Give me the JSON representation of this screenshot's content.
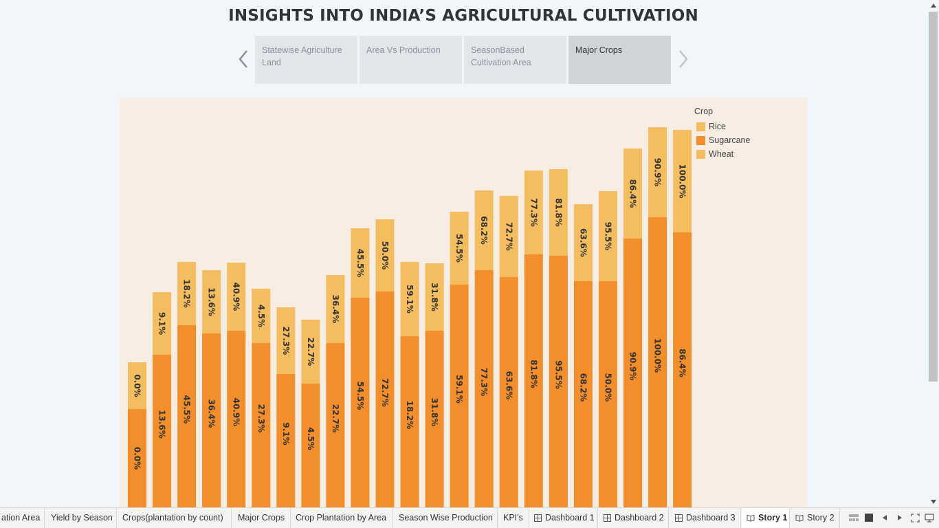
{
  "title": "INSIGHTS INTO INDIA’S AGRICULTURAL CULTIVATION",
  "story_points": [
    {
      "label": "Statewise Agriculture Land",
      "active": false
    },
    {
      "label": "Area Vs Production",
      "active": false
    },
    {
      "label": "SeasonBased Cultivation Area",
      "active": false
    },
    {
      "label": "Major Crops",
      "active": true
    }
  ],
  "legend": {
    "title": "Crop",
    "items": [
      {
        "label": "Rice",
        "color": "#f4bd5f"
      },
      {
        "label": "Sugarcane",
        "color": "#f28e2b"
      },
      {
        "label": "Wheat",
        "color": "#f4bd5f"
      }
    ]
  },
  "chart_data": {
    "type": "bar",
    "stacked": true,
    "series": [
      {
        "name": "Sugarcane",
        "color": "#f28e2b",
        "labels": [
          "0.0%",
          "13.6%",
          "45.5%",
          "36.4%",
          "40.9%",
          "27.3%",
          "9.1%",
          "4.5%",
          "22.7%",
          "54.5%",
          "72.7%",
          "18.2%",
          "31.8%",
          "59.1%",
          "77.3%",
          "63.6%",
          "81.8%",
          "95.5%",
          "68.2%",
          "50.0%",
          "90.9%",
          "100.0%",
          "86.4%"
        ]
      },
      {
        "name": "Rice",
        "color": "#f4bd5f",
        "labels": [
          "0.0%",
          "9.1%",
          "18.2%",
          "13.6%",
          "40.9%",
          "4.5%",
          "27.3%",
          "22.7%",
          "36.4%",
          "45.5%",
          "50.0%",
          "59.1%",
          "31.8%",
          "54.5%",
          "68.2%",
          "72.7%",
          "77.3%",
          "81.8%",
          "63.6%",
          "95.5%",
          "86.4%",
          "90.9%",
          "100.0%"
        ]
      }
    ],
    "bar_totals": [
      211,
      313,
      357,
      345,
      356,
      318,
      291,
      273,
      338,
      406,
      419,
      357,
      355,
      430,
      461,
      453,
      490,
      492,
      441,
      460,
      522,
      553,
      549
    ],
    "bar_bottom_segment": [
      143,
      222,
      265,
      253,
      257,
      239,
      194,
      180,
      239,
      305,
      314,
      249,
      257,
      324,
      345,
      335,
      368,
      366,
      329,
      329,
      391,
      422,
      400
    ],
    "xlabel": "",
    "ylabel": ""
  },
  "tabs": [
    {
      "label": "ation Area",
      "icon": "none",
      "active": false
    },
    {
      "label": "Yield by Season",
      "icon": "none",
      "active": false
    },
    {
      "label": "Crops(plantation by count)",
      "icon": "none",
      "active": false
    },
    {
      "label": "Major Crops",
      "icon": "none",
      "active": false
    },
    {
      "label": "Crop Plantation by Area",
      "icon": "none",
      "active": false
    },
    {
      "label": "Season Wise Production",
      "icon": "none",
      "active": false
    },
    {
      "label": "KPI's",
      "icon": "none",
      "active": false
    },
    {
      "label": "Dashboard 1",
      "icon": "dashboard-icon",
      "active": false
    },
    {
      "label": "Dashboard 2",
      "icon": "dashboard-icon",
      "active": false
    },
    {
      "label": "Dashboard 3",
      "icon": "dashboard-icon",
      "active": false
    },
    {
      "label": "Story 1",
      "icon": "story-icon",
      "active": true
    },
    {
      "label": "Story 2",
      "icon": "story-icon",
      "active": false
    }
  ]
}
